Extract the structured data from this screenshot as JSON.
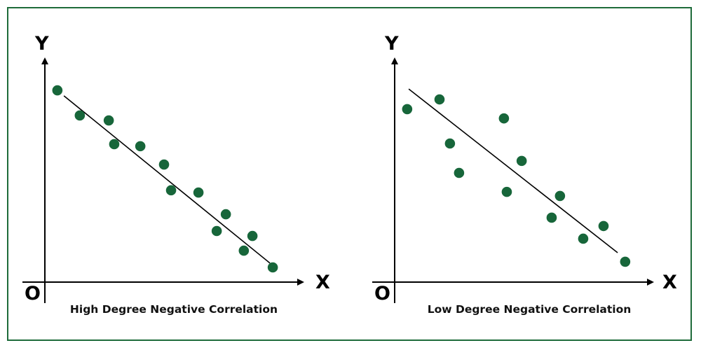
{
  "colors": {
    "point": "#17663a",
    "border": "#1e6b3a",
    "axis": "#000000"
  },
  "chart_data": [
    {
      "type": "scatter",
      "title": "High Degree Negative Correlation",
      "xlabel": "X",
      "ylabel": "Y",
      "origin_label": "O",
      "xlim": [
        0,
        100
      ],
      "ylim": [
        0,
        100
      ],
      "grid": false,
      "points": [
        [
          4.8,
          84.8
        ],
        [
          13.4,
          73.7
        ],
        [
          24.5,
          71.5
        ],
        [
          26.6,
          61.0
        ],
        [
          36.6,
          60.1
        ],
        [
          45.7,
          52.0
        ],
        [
          48.4,
          40.6
        ],
        [
          58.9,
          39.6
        ],
        [
          69.4,
          30.0
        ],
        [
          65.9,
          22.6
        ],
        [
          79.6,
          20.4
        ],
        [
          76.3,
          13.9
        ],
        [
          87.4,
          6.5
        ]
      ],
      "trend_line": [
        [
          7.3,
          82.4
        ],
        [
          86.3,
          8.4
        ]
      ]
    },
    {
      "type": "scatter",
      "title": "Low Degree Negative Correlation",
      "xlabel": "X",
      "ylabel": "Y",
      "origin_label": "O",
      "xlim": [
        0,
        100
      ],
      "ylim": [
        0,
        100
      ],
      "grid": false,
      "points": [
        [
          4.8,
          76.5
        ],
        [
          17.2,
          80.8
        ],
        [
          21.2,
          61.3
        ],
        [
          24.7,
          48.3
        ],
        [
          41.9,
          72.4
        ],
        [
          48.7,
          53.6
        ],
        [
          43.0,
          39.9
        ],
        [
          63.4,
          38.1
        ],
        [
          60.2,
          28.5
        ],
        [
          72.3,
          19.2
        ],
        [
          80.1,
          24.8
        ],
        [
          88.4,
          9.0
        ]
      ],
      "trend_line": [
        [
          5.4,
          85.4
        ],
        [
          85.5,
          13.0
        ]
      ]
    }
  ]
}
